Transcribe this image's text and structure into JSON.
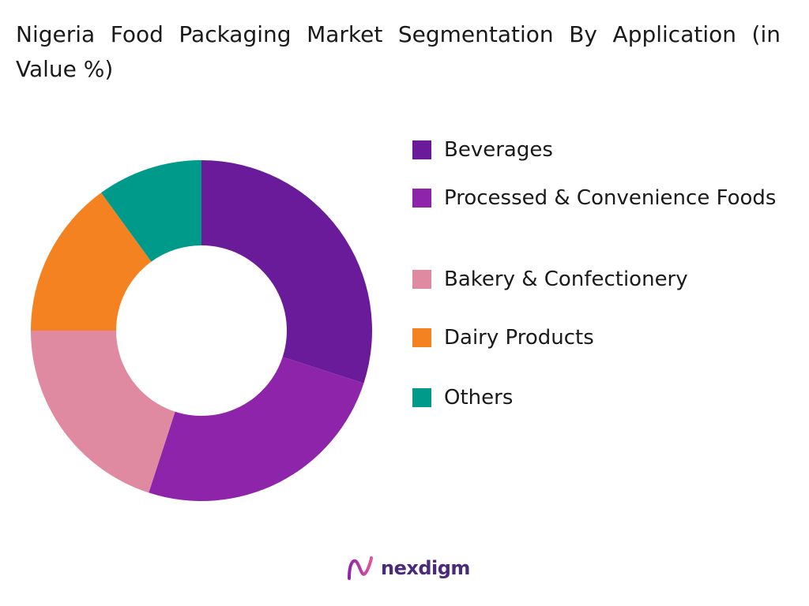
{
  "chart_data": {
    "type": "pie",
    "title": "Nigeria Food Packaging Market Segmentation By Application (in Value %)",
    "categories": [
      "Beverages",
      "Processed & Convenience Foods",
      "Bakery & Confectionery",
      "Dairy Products",
      "Others"
    ],
    "values": [
      30,
      25,
      20,
      15,
      10
    ],
    "colors": [
      "#6a1b9a",
      "#8e24aa",
      "#df8aa0",
      "#f58220",
      "#009a8a"
    ],
    "donut": true,
    "legend_position": "right"
  },
  "brand": {
    "name": "nexdigm",
    "logo_icon": "nexdigm-logo-icon"
  }
}
